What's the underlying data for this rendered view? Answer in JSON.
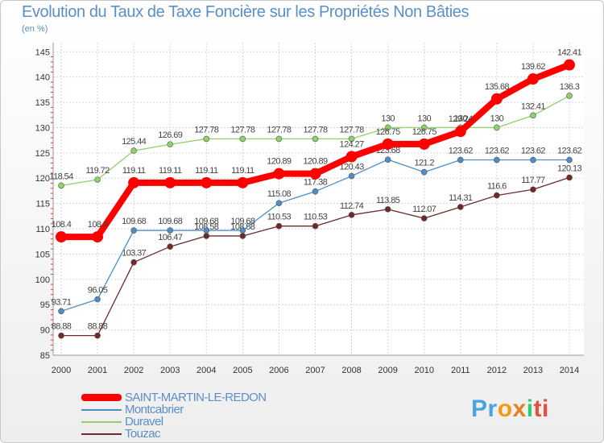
{
  "chart_data": {
    "type": "line",
    "title": "Evolution du Taux de Taxe Foncière sur les Propriétés Non Bâties",
    "unit_label": "(en %)",
    "categories": [
      "2000",
      "2001",
      "2002",
      "2003",
      "2004",
      "2005",
      "2006",
      "2007",
      "2008",
      "2009",
      "2010",
      "2011",
      "2012",
      "2013",
      "2014"
    ],
    "y_ticks": [
      85,
      90,
      95,
      100,
      105,
      110,
      115,
      120,
      125,
      130,
      135,
      140,
      145
    ],
    "ylim": [
      85,
      146
    ],
    "grid": true,
    "series": [
      {
        "name": "Touzac",
        "color": "#6e2a2a",
        "values": [
          88.88,
          88.88,
          103.37,
          106.47,
          108.58,
          108.58,
          110.53,
          110.53,
          112.74,
          113.85,
          112.07,
          114.31,
          116.6,
          117.77,
          120.13
        ],
        "labels": [
          "88.88",
          "88.88",
          "103.37",
          "106.47",
          "108.58",
          "108.58",
          "110.53",
          "110.53",
          "112.74",
          "113.85",
          "112.07",
          "114.31",
          "116.6",
          "117.77",
          "120.13"
        ]
      },
      {
        "name": "Montcabrier",
        "color": "#4d8ec6",
        "values": [
          93.71,
          96.05,
          109.68,
          109.68,
          109.68,
          109.68,
          115.08,
          117.38,
          120.43,
          123.68,
          121.2,
          123.62,
          123.62,
          123.62,
          123.62
        ],
        "labels": [
          "93.71",
          "96.05",
          "109.68",
          "109.68",
          "109.68",
          "109.68",
          "115.08",
          "117.38",
          "120.43",
          "123.68",
          "121.2",
          "123.62",
          "123.62",
          "123.62",
          "123.62"
        ]
      },
      {
        "name": "Duravel",
        "color": "#8fd16a",
        "values": [
          118.54,
          119.72,
          125.44,
          126.69,
          127.78,
          127.78,
          127.78,
          127.78,
          127.78,
          130,
          130,
          130,
          130,
          132.41,
          136.3
        ],
        "labels": [
          "118.54",
          "119.72",
          "125.44",
          "126.69",
          "127.78",
          "127.78",
          "127.78",
          "127.78",
          "127.78",
          "130",
          "130",
          "130",
          "130",
          "132.41",
          "136.3"
        ]
      },
      {
        "name": "SAINT-MARTIN-LE-REDON",
        "color": "#ff0000",
        "values": [
          108.4,
          108.4,
          119.11,
          119.11,
          119.11,
          119.11,
          120.89,
          120.89,
          124.27,
          126.75,
          126.75,
          129.24,
          135.68,
          139.62,
          142.41
        ],
        "labels": [
          "108.4",
          "108.4",
          "119.11",
          "119.11",
          "119.11",
          "119.11",
          "120.89",
          "120.89",
          "124.27",
          "126.75",
          "126.75",
          "129.24",
          "135.68",
          "139.62",
          "142.41"
        ]
      }
    ]
  },
  "legend": [
    {
      "label": "SAINT-MARTIN-LE-REDON",
      "color": "#ff0000"
    },
    {
      "label": "Montcabrier",
      "color": "#4d8ec6"
    },
    {
      "label": "Duravel",
      "color": "#8fd16a"
    },
    {
      "label": "Touzac",
      "color": "#6e2a2a"
    }
  ],
  "brand": {
    "p1": "Pr",
    "p2": "o",
    "p3": "x",
    "p4": "i",
    "p5": "ti"
  }
}
